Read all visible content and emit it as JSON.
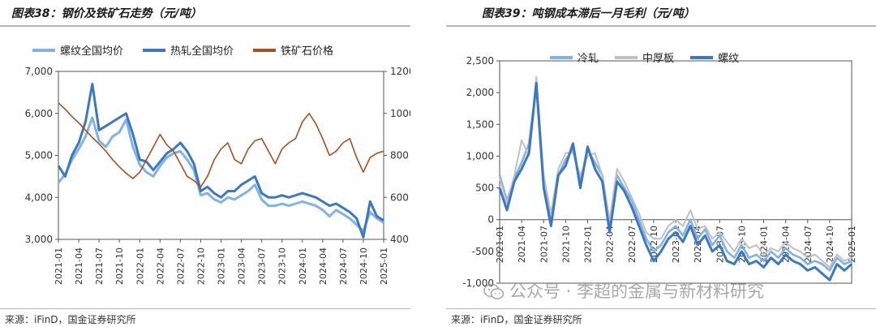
{
  "left_panel": {
    "title": "图表38：钢价及铁矿石走势（元/吨）",
    "source": "来源：iFinD，国金证券研究所"
  },
  "right_panel": {
    "title": "图表39：吨钢成本滞后一月毛利（元/吨）",
    "source": "来源：iFinD，国金证券研究所"
  },
  "watermark": {
    "text": "公众号 · 李超的金属与新材料研究",
    "icon": "wechat-icon"
  },
  "chart_data": [
    {
      "type": "line",
      "title": "钢价及铁矿石走势（元/吨）",
      "xlabel": "",
      "ylabel": "元/吨",
      "ylim": [
        3000,
        7000
      ],
      "y2lim": [
        400,
        1200
      ],
      "yticks": [
        "3,000",
        "4,000",
        "5,000",
        "6,000",
        "7,000"
      ],
      "y2ticks": [
        "400",
        "600",
        "800",
        "1000",
        "1200"
      ],
      "xticks": [
        "2021-01",
        "2021-04",
        "2021-07",
        "2021-10",
        "2022-01",
        "2022-04",
        "2022-07",
        "2022-10",
        "2023-01",
        "2023-04",
        "2023-07",
        "2023-10",
        "2024-01",
        "2024-04",
        "2024-07",
        "2024-10",
        "2025-01"
      ],
      "legend": "top",
      "series": [
        {
          "name": "螺纹全国均价",
          "axis": "left",
          "color": "#7fb2e5",
          "x": [
            0,
            1,
            2,
            3,
            4,
            5,
            6,
            7,
            8,
            9,
            10,
            11,
            12,
            13,
            14,
            15,
            16,
            17,
            18,
            19,
            20,
            21,
            22,
            23,
            24,
            25,
            26,
            27,
            28,
            29,
            30,
            31,
            32,
            33,
            34,
            35,
            36,
            37,
            38,
            39,
            40,
            41,
            42,
            43,
            44,
            45,
            46,
            47,
            48
          ],
          "values": [
            4350,
            4550,
            4900,
            5150,
            5450,
            5900,
            5350,
            5200,
            5450,
            5550,
            5850,
            5200,
            4780,
            4600,
            4500,
            4750,
            4950,
            5050,
            5100,
            4900,
            4650,
            4050,
            4100,
            3950,
            3880,
            4000,
            3950,
            4050,
            4150,
            4300,
            3950,
            3800,
            3800,
            3850,
            3800,
            3850,
            3900,
            3850,
            3800,
            3700,
            3550,
            3700,
            3600,
            3500,
            3350,
            3200,
            3650,
            3500,
            3400
          ]
        },
        {
          "name": "热轧全国均价",
          "axis": "left",
          "color": "#3a78c4",
          "x": [
            0,
            1,
            2,
            3,
            4,
            5,
            6,
            7,
            8,
            9,
            10,
            11,
            12,
            13,
            14,
            15,
            16,
            17,
            18,
            19,
            20,
            21,
            22,
            23,
            24,
            25,
            26,
            27,
            28,
            29,
            30,
            31,
            32,
            33,
            34,
            35,
            36,
            37,
            38,
            39,
            40,
            41,
            42,
            43,
            44,
            45,
            46,
            47,
            48
          ],
          "values": [
            4750,
            4500,
            5000,
            5300,
            5800,
            6700,
            5600,
            5700,
            5800,
            5900,
            6000,
            5500,
            4900,
            4850,
            4650,
            4850,
            5050,
            5150,
            5300,
            5100,
            4800,
            4150,
            4250,
            4100,
            4000,
            4150,
            4150,
            4300,
            4400,
            4500,
            4100,
            4000,
            4000,
            4050,
            4000,
            4050,
            4100,
            4050,
            4000,
            3900,
            3800,
            3850,
            3750,
            3650,
            3500,
            3050,
            3900,
            3550,
            3450
          ]
        },
        {
          "name": "铁矿石价格",
          "axis": "right",
          "color": "#a5511f",
          "x": [
            0,
            1,
            2,
            3,
            4,
            5,
            6,
            7,
            8,
            9,
            10,
            11,
            12,
            13,
            14,
            15,
            16,
            17,
            18,
            19,
            20,
            21,
            22,
            23,
            24,
            25,
            26,
            27,
            28,
            29,
            30,
            31,
            32,
            33,
            34,
            35,
            36,
            37,
            38,
            39,
            40,
            41,
            42,
            43,
            44,
            45,
            46,
            47,
            48
          ],
          "values": [
            1050,
            1020,
            985,
            955,
            920,
            885,
            855,
            820,
            780,
            745,
            715,
            690,
            720,
            780,
            840,
            900,
            850,
            820,
            760,
            700,
            680,
            650,
            700,
            780,
            830,
            860,
            780,
            760,
            830,
            870,
            880,
            820,
            760,
            830,
            860,
            880,
            960,
            1000,
            950,
            880,
            800,
            820,
            860,
            880,
            790,
            720,
            790,
            810,
            820
          ]
        }
      ]
    },
    {
      "type": "line",
      "title": "吨钢成本滞后一月毛利（元/吨）",
      "xlabel": "",
      "ylabel": "元/吨",
      "ylim": [
        -1000,
        2500
      ],
      "yticks": [
        "-1,000",
        "-500",
        "0",
        "500",
        "1,000",
        "1,500",
        "2,000",
        "2,500"
      ],
      "xticks": [
        "2021-01",
        "2021-04",
        "2021-07",
        "2021-10",
        "2022-01",
        "2022-04",
        "2022-07",
        "2022-10",
        "2023-01",
        "2023-04",
        "2023-07",
        "2023-10",
        "2024-01",
        "2024-04",
        "2024-07",
        "2024-10",
        "2025-01"
      ],
      "legend": "top",
      "series": [
        {
          "name": "冷轧",
          "color": "#7fb2e5",
          "x": [
            0,
            1,
            2,
            3,
            4,
            5,
            6,
            7,
            8,
            9,
            10,
            11,
            12,
            13,
            14,
            15,
            16,
            17,
            18,
            19,
            20,
            21,
            22,
            23,
            24,
            25,
            26,
            27,
            28,
            29,
            30,
            31,
            32,
            33,
            34,
            35,
            36,
            37,
            38,
            39,
            40,
            41,
            42,
            43,
            44,
            45,
            46,
            47,
            48
          ],
          "values": [
            700,
            300,
            650,
            900,
            1200,
            2100,
            600,
            -50,
            700,
            950,
            1100,
            600,
            1100,
            900,
            700,
            -100,
            700,
            500,
            300,
            0,
            -300,
            -500,
            -400,
            -200,
            -100,
            -250,
            0,
            -300,
            -150,
            -400,
            -250,
            -500,
            -600,
            -400,
            -600,
            -550,
            -650,
            -500,
            -600,
            -450,
            -550,
            -600,
            -700,
            -650,
            -700,
            -800,
            -600,
            -700,
            -650
          ]
        },
        {
          "name": "中厚板",
          "color": "#c0c0c0",
          "x": [
            0,
            1,
            2,
            3,
            4,
            5,
            6,
            7,
            8,
            9,
            10,
            11,
            12,
            13,
            14,
            15,
            16,
            17,
            18,
            19,
            20,
            21,
            22,
            23,
            24,
            25,
            26,
            27,
            28,
            29,
            30,
            31,
            32,
            33,
            34,
            35,
            36,
            37,
            38,
            39,
            40,
            41,
            42,
            43,
            44,
            45,
            46,
            47,
            48
          ],
          "values": [
            650,
            250,
            700,
            1250,
            1000,
            2250,
            700,
            100,
            800,
            1050,
            1050,
            700,
            1000,
            1050,
            700,
            0,
            800,
            600,
            350,
            100,
            -200,
            -300,
            -300,
            -100,
            0,
            -100,
            150,
            -150,
            -100,
            -300,
            -200,
            -350,
            -500,
            -300,
            -450,
            -400,
            -550,
            -450,
            -500,
            -350,
            -450,
            -500,
            -600,
            -550,
            -650,
            -750,
            -550,
            -650,
            -600
          ]
        },
        {
          "name": "螺纹",
          "color": "#3a78c4",
          "x": [
            0,
            1,
            2,
            3,
            4,
            5,
            6,
            7,
            8,
            9,
            10,
            11,
            12,
            13,
            14,
            15,
            16,
            17,
            18,
            19,
            20,
            21,
            22,
            23,
            24,
            25,
            26,
            27,
            28,
            29,
            30,
            31,
            32,
            33,
            34,
            35,
            36,
            37,
            38,
            39,
            40,
            41,
            42,
            43,
            44,
            45,
            46,
            47,
            48
          ],
          "values": [
            500,
            150,
            600,
            800,
            1050,
            2150,
            500,
            -100,
            700,
            850,
            1200,
            500,
            1150,
            800,
            600,
            -200,
            600,
            450,
            200,
            -100,
            -400,
            -650,
            -500,
            -300,
            -200,
            -350,
            -100,
            -400,
            -250,
            -500,
            -400,
            -650,
            -700,
            -500,
            -700,
            -650,
            -750,
            -600,
            -700,
            -550,
            -650,
            -700,
            -800,
            -750,
            -850,
            -950,
            -700,
            -800,
            -700
          ]
        }
      ]
    }
  ]
}
